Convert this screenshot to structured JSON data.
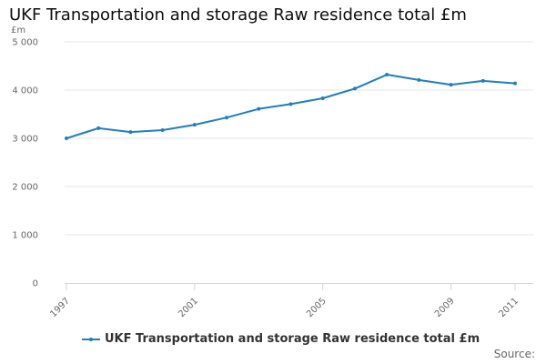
{
  "title": "UKF Transportation and storage Raw residence total £m",
  "source_label": "Source:",
  "colors": {
    "series": "#1f7fbf",
    "grid": "#e6e6e6",
    "axis": "#ccd6eb",
    "text": "#666666"
  },
  "chart_data": {
    "type": "line",
    "title": "UKF Transportation and storage Raw residence total £m",
    "ylabel": "£m",
    "xlabel": "",
    "ylim": [
      0,
      5000
    ],
    "yticks": [
      0,
      1000,
      2000,
      3000,
      4000,
      5000
    ],
    "ytick_labels": [
      "0",
      "1 000",
      "2 000",
      "3 000",
      "4 000",
      "5 000"
    ],
    "xlim": [
      1997,
      2011
    ],
    "xticks": [
      1997,
      2001,
      2005,
      2009,
      2011
    ],
    "xtick_labels": [
      "1997",
      "2001",
      "2005",
      "2009",
      "2011"
    ],
    "grid": true,
    "legend": "bottom",
    "series": [
      {
        "name": "UKF Transportation and storage Raw residence total £m",
        "x": [
          1997,
          1998,
          1999,
          2000,
          2001,
          2002,
          2003,
          2004,
          2005,
          2006,
          2007,
          2008,
          2009,
          2010,
          2011
        ],
        "values": [
          3000,
          3210,
          3130,
          3170,
          3280,
          3430,
          3610,
          3710,
          3830,
          4030,
          4320,
          4210,
          4110,
          4190,
          4140
        ]
      }
    ]
  }
}
